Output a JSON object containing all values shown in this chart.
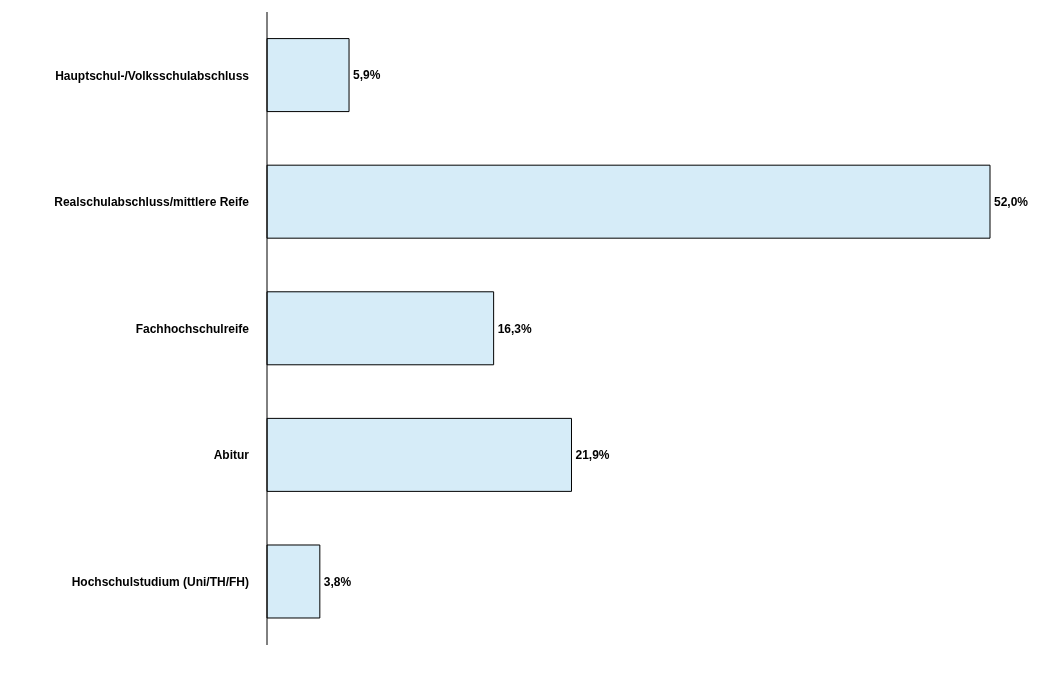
{
  "chart_data": {
    "type": "bar",
    "orientation": "horizontal",
    "categories": [
      "Hauptschul-/Volksschulabschluss",
      "Realschulabschluss/mittlere Reife",
      "Fachhochschulreife",
      "Abitur",
      "Hochschulstudium (Uni/TH/FH)"
    ],
    "values": [
      5.9,
      52.0,
      16.3,
      21.9,
      3.8
    ],
    "value_labels": [
      "5,9%",
      "52,0%",
      "16,3%",
      "21,9%",
      "3,8%"
    ],
    "color": "#d6ecf8",
    "tick_labels": "y"
  }
}
